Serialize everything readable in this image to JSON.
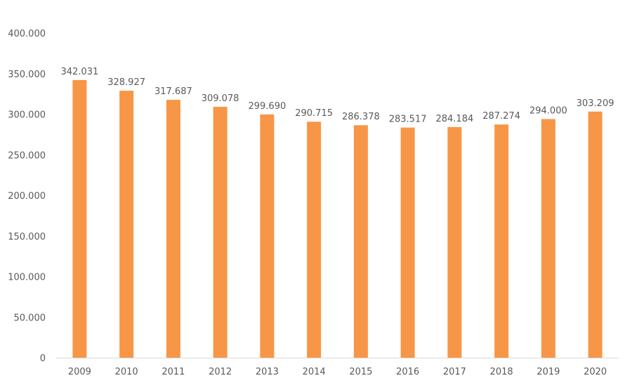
{
  "chart_data": {
    "type": "bar",
    "title": "",
    "xlabel": "",
    "ylabel": "",
    "categories": [
      "2009",
      "2010",
      "2011",
      "2012",
      "2013",
      "2014",
      "2015",
      "2016",
      "2017",
      "2018",
      "2019",
      "2020"
    ],
    "values": [
      342031,
      328927,
      317687,
      309078,
      299690,
      290715,
      286378,
      283517,
      284184,
      287274,
      294000,
      303209
    ],
    "data_labels": [
      "342.031",
      "328.927",
      "317.687",
      "309.078",
      "299.690",
      "290.715",
      "286.378",
      "283.517",
      "284.184",
      "287.274",
      "294.000",
      "303.209"
    ],
    "ylim": [
      0,
      400000
    ],
    "yticks": [
      0,
      50000,
      100000,
      150000,
      200000,
      250000,
      300000,
      350000,
      400000
    ],
    "ytick_labels": [
      "0",
      "50.000",
      "100.000",
      "150.000",
      "200.000",
      "250.000",
      "300.000",
      "350.000",
      "400.000"
    ],
    "grid": false,
    "legend": "none",
    "colors": {
      "bar": "#F79646",
      "text": "#595959",
      "axis": "#D9D9D9"
    }
  }
}
